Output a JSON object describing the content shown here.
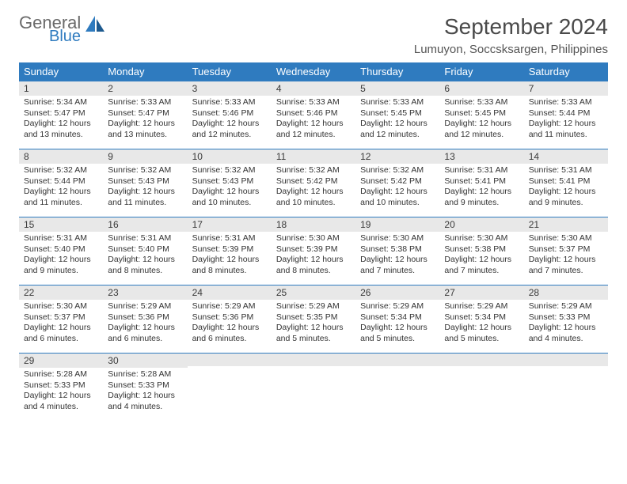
{
  "logo": {
    "word1": "General",
    "word2": "Blue"
  },
  "colors": {
    "header_bg": "#2f7bbf",
    "header_fg": "#ffffff",
    "daynum_bg": "#e8e8e8",
    "row_border": "#2f7bbf",
    "logo_gray": "#6a6a6a",
    "logo_blue": "#2f7bbf"
  },
  "title": "September 2024",
  "location": "Lumuyon, Soccsksargen, Philippines",
  "weekdays": [
    "Sunday",
    "Monday",
    "Tuesday",
    "Wednesday",
    "Thursday",
    "Friday",
    "Saturday"
  ],
  "weeks": [
    [
      {
        "n": "1",
        "sr": "5:34 AM",
        "ss": "5:47 PM",
        "dl": "12 hours and 13 minutes."
      },
      {
        "n": "2",
        "sr": "5:33 AM",
        "ss": "5:47 PM",
        "dl": "12 hours and 13 minutes."
      },
      {
        "n": "3",
        "sr": "5:33 AM",
        "ss": "5:46 PM",
        "dl": "12 hours and 12 minutes."
      },
      {
        "n": "4",
        "sr": "5:33 AM",
        "ss": "5:46 PM",
        "dl": "12 hours and 12 minutes."
      },
      {
        "n": "5",
        "sr": "5:33 AM",
        "ss": "5:45 PM",
        "dl": "12 hours and 12 minutes."
      },
      {
        "n": "6",
        "sr": "5:33 AM",
        "ss": "5:45 PM",
        "dl": "12 hours and 12 minutes."
      },
      {
        "n": "7",
        "sr": "5:33 AM",
        "ss": "5:44 PM",
        "dl": "12 hours and 11 minutes."
      }
    ],
    [
      {
        "n": "8",
        "sr": "5:32 AM",
        "ss": "5:44 PM",
        "dl": "12 hours and 11 minutes."
      },
      {
        "n": "9",
        "sr": "5:32 AM",
        "ss": "5:43 PM",
        "dl": "12 hours and 11 minutes."
      },
      {
        "n": "10",
        "sr": "5:32 AM",
        "ss": "5:43 PM",
        "dl": "12 hours and 10 minutes."
      },
      {
        "n": "11",
        "sr": "5:32 AM",
        "ss": "5:42 PM",
        "dl": "12 hours and 10 minutes."
      },
      {
        "n": "12",
        "sr": "5:32 AM",
        "ss": "5:42 PM",
        "dl": "12 hours and 10 minutes."
      },
      {
        "n": "13",
        "sr": "5:31 AM",
        "ss": "5:41 PM",
        "dl": "12 hours and 9 minutes."
      },
      {
        "n": "14",
        "sr": "5:31 AM",
        "ss": "5:41 PM",
        "dl": "12 hours and 9 minutes."
      }
    ],
    [
      {
        "n": "15",
        "sr": "5:31 AM",
        "ss": "5:40 PM",
        "dl": "12 hours and 9 minutes."
      },
      {
        "n": "16",
        "sr": "5:31 AM",
        "ss": "5:40 PM",
        "dl": "12 hours and 8 minutes."
      },
      {
        "n": "17",
        "sr": "5:31 AM",
        "ss": "5:39 PM",
        "dl": "12 hours and 8 minutes."
      },
      {
        "n": "18",
        "sr": "5:30 AM",
        "ss": "5:39 PM",
        "dl": "12 hours and 8 minutes."
      },
      {
        "n": "19",
        "sr": "5:30 AM",
        "ss": "5:38 PM",
        "dl": "12 hours and 7 minutes."
      },
      {
        "n": "20",
        "sr": "5:30 AM",
        "ss": "5:38 PM",
        "dl": "12 hours and 7 minutes."
      },
      {
        "n": "21",
        "sr": "5:30 AM",
        "ss": "5:37 PM",
        "dl": "12 hours and 7 minutes."
      }
    ],
    [
      {
        "n": "22",
        "sr": "5:30 AM",
        "ss": "5:37 PM",
        "dl": "12 hours and 6 minutes."
      },
      {
        "n": "23",
        "sr": "5:29 AM",
        "ss": "5:36 PM",
        "dl": "12 hours and 6 minutes."
      },
      {
        "n": "24",
        "sr": "5:29 AM",
        "ss": "5:36 PM",
        "dl": "12 hours and 6 minutes."
      },
      {
        "n": "25",
        "sr": "5:29 AM",
        "ss": "5:35 PM",
        "dl": "12 hours and 5 minutes."
      },
      {
        "n": "26",
        "sr": "5:29 AM",
        "ss": "5:34 PM",
        "dl": "12 hours and 5 minutes."
      },
      {
        "n": "27",
        "sr": "5:29 AM",
        "ss": "5:34 PM",
        "dl": "12 hours and 5 minutes."
      },
      {
        "n": "28",
        "sr": "5:29 AM",
        "ss": "5:33 PM",
        "dl": "12 hours and 4 minutes."
      }
    ],
    [
      {
        "n": "29",
        "sr": "5:28 AM",
        "ss": "5:33 PM",
        "dl": "12 hours and 4 minutes."
      },
      {
        "n": "30",
        "sr": "5:28 AM",
        "ss": "5:33 PM",
        "dl": "12 hours and 4 minutes."
      },
      null,
      null,
      null,
      null,
      null
    ]
  ],
  "labels": {
    "sunrise": "Sunrise: ",
    "sunset": "Sunset: ",
    "daylight": "Daylight: "
  }
}
